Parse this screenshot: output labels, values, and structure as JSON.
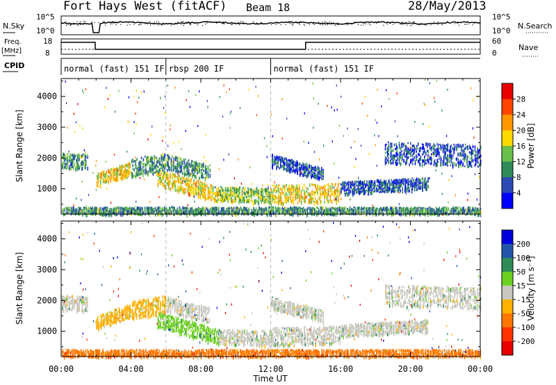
{
  "header": {
    "title": "Fort Hays West (fitACF)",
    "beam": "Beam 18",
    "date": "28/May/2013"
  },
  "summary_panels": {
    "nsky": {
      "label": "N.Sky",
      "ticks": [
        "10^5",
        "10^0"
      ]
    },
    "nsearch": {
      "label": "N.Search",
      "ticks": [
        "10^5",
        "10^0"
      ]
    },
    "freq": {
      "label_top": "Freq.",
      "label_bottom": "[MHz]",
      "ticks": [
        "18",
        "8"
      ]
    },
    "nave": {
      "label": "Nave",
      "ticks": [
        "60",
        "0"
      ]
    },
    "cpid": {
      "label": "CPID"
    }
  },
  "cpid_segments": [
    {
      "start_hour": 0,
      "end_hour": 6,
      "label": "normal (fast) 151 IF"
    },
    {
      "start_hour": 6,
      "end_hour": 12,
      "label": "rbsp 200 IF"
    },
    {
      "start_hour": 12,
      "end_hour": 24,
      "label": "normal (fast) 151 IF"
    }
  ],
  "x_axis": {
    "label": "Time UT",
    "tick_labels": [
      "00:00",
      "04:00",
      "08:00",
      "12:00",
      "16:00",
      "20:00",
      "00:00"
    ],
    "tick_hours": [
      0,
      4,
      8,
      12,
      16,
      20,
      24
    ]
  },
  "y_axis": {
    "label": "Slant Range [km]",
    "tick_labels": [
      "1000",
      "2000",
      "3000",
      "4000"
    ],
    "tick_values": [
      1000,
      2000,
      3000,
      4000
    ],
    "range": [
      180,
      4580
    ]
  },
  "colorbars": {
    "power": {
      "label": "Power [dB]",
      "tick_labels": [
        "4",
        "8",
        "12",
        "16",
        "20",
        "24",
        "28"
      ],
      "colors": [
        "#0000ff",
        "#2d4bb4",
        "#2e8b57",
        "#6ac04a",
        "#ffd800",
        "#ff9600",
        "#ff4400",
        "#e60000"
      ]
    },
    "velocity": {
      "label": "Velocity [m s⁻¹]",
      "tick_labels": [
        "200",
        "100",
        "50",
        "15",
        "-15",
        "-50",
        "-100",
        "-200"
      ],
      "colors": [
        "#0000dd",
        "#2255aa",
        "#2e8b57",
        "#6cd020",
        "#c8c8c0",
        "#ffb000",
        "#ff7700",
        "#ff3300",
        "#e60000"
      ]
    }
  },
  "chart_data": {
    "type": "heatmap",
    "x_unit": "UT hours",
    "y_unit": "km",
    "features": [
      {
        "name": "band",
        "start_hour": 0.0,
        "end_hour": 1.5,
        "range_start": 1950,
        "range_end": 1900,
        "width": 250,
        "level": 2,
        "vel": 4
      },
      {
        "name": "band",
        "start_hour": 2.0,
        "end_hour": 4.0,
        "range_start": 1300,
        "range_end": 1700,
        "width": 220,
        "level": 4,
        "vel": 5
      },
      {
        "name": "band",
        "start_hour": 4.0,
        "end_hour": 6.0,
        "range_start": 1700,
        "range_end": 1900,
        "width": 300,
        "level": 2,
        "vel": 5
      },
      {
        "name": "band",
        "start_hour": 6.0,
        "end_hour": 8.5,
        "range_start": 1900,
        "range_end": 1550,
        "width": 250,
        "level": 2,
        "vel": 4
      },
      {
        "name": "band",
        "start_hour": 5.5,
        "end_hour": 9.0,
        "range_start": 1400,
        "range_end": 850,
        "width": 250,
        "level": 4,
        "vel": 3
      },
      {
        "name": "band",
        "start_hour": 9.0,
        "end_hour": 12.0,
        "range_start": 850,
        "range_end": 800,
        "width": 250,
        "level": 3,
        "vel": 4
      },
      {
        "name": "band",
        "start_hour": 12.0,
        "end_hour": 16.0,
        "range_start": 850,
        "range_end": 900,
        "width": 300,
        "level": 4,
        "vel": 4
      },
      {
        "name": "band",
        "start_hour": 12.0,
        "end_hour": 15.0,
        "range_start": 1950,
        "range_end": 1500,
        "width": 200,
        "level": 1,
        "vel": 4
      },
      {
        "name": "band",
        "start_hour": 16.0,
        "end_hour": 21.0,
        "range_start": 1050,
        "range_end": 1200,
        "width": 200,
        "level": 1,
        "vel": 4
      },
      {
        "name": "band",
        "start_hour": 18.5,
        "end_hour": 24.0,
        "range_start": 2200,
        "range_end": 2100,
        "width": 350,
        "level": 1,
        "vel": 4
      },
      {
        "name": "band",
        "start_hour": 0.0,
        "end_hour": 24.0,
        "range_start": 280,
        "range_end": 280,
        "width": 150,
        "level": 2,
        "vel": 6
      }
    ]
  }
}
